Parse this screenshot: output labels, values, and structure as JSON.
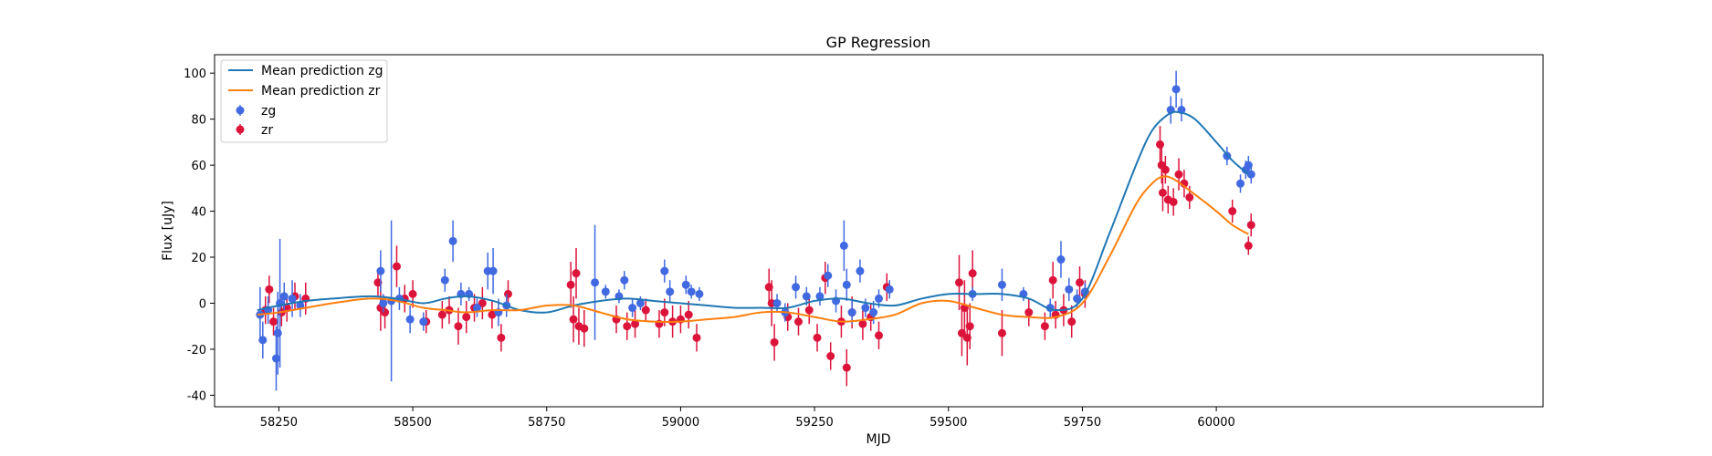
{
  "chart_data": {
    "type": "scatter",
    "title": "GP Regression",
    "xlabel": "MJD",
    "ylabel": "Flux [uJy]",
    "xlim": [
      58130,
      60610
    ],
    "ylim": [
      -45,
      108
    ],
    "xticks": [
      58250,
      58500,
      58750,
      59000,
      59250,
      59500,
      59750,
      60000
    ],
    "yticks": [
      -40,
      -20,
      0,
      20,
      40,
      60,
      80,
      100
    ],
    "grid": false,
    "legend_position": "top-left",
    "colors": {
      "zg_line": "#1f77b4",
      "zr_line": "#ff7f0e",
      "zg_points": "#4169e1",
      "zr_points": "#dc143c"
    },
    "series": [
      {
        "name": "Mean prediction zg",
        "kind": "line",
        "x": [
          58210,
          58250,
          58300,
          58350,
          58420,
          58470,
          58520,
          58560,
          58600,
          58650,
          58700,
          58750,
          58800,
          58850,
          58900,
          58950,
          59000,
          59050,
          59100,
          59150,
          59200,
          59250,
          59300,
          59350,
          59400,
          59450,
          59500,
          59550,
          59600,
          59650,
          59700,
          59750,
          59800,
          59850,
          59880,
          59910,
          59930,
          59960,
          60000,
          60030,
          60060
        ],
        "y": [
          -3,
          -1,
          1,
          2,
          3,
          2,
          0,
          2,
          3,
          1,
          -3,
          -4,
          -1,
          1,
          2,
          1,
          0,
          -1,
          -2,
          -2,
          -2,
          1,
          2,
          0,
          -1,
          2,
          4,
          4,
          4,
          2,
          -3,
          2,
          30,
          60,
          75,
          82,
          83,
          80,
          70,
          62,
          56
        ]
      },
      {
        "name": "Mean prediction zr",
        "kind": "line",
        "x": [
          58210,
          58250,
          58300,
          58350,
          58420,
          58470,
          58520,
          58560,
          58600,
          58650,
          58700,
          58750,
          58800,
          58850,
          58900,
          58950,
          59000,
          59050,
          59100,
          59150,
          59200,
          59250,
          59300,
          59350,
          59400,
          59450,
          59500,
          59550,
          59600,
          59650,
          59700,
          59750,
          59800,
          59850,
          59880,
          59900,
          59920,
          59950,
          60000,
          60030,
          60060
        ],
        "y": [
          -5,
          -4,
          -2,
          0,
          2,
          1,
          -2,
          -3,
          -4,
          -3,
          -3,
          -1,
          -1,
          -4,
          -7,
          -8,
          -8,
          -7,
          -6,
          -4,
          -4,
          -6,
          -8,
          -7,
          -5,
          0,
          1,
          -2,
          -5,
          -6,
          -6,
          0,
          20,
          43,
          52,
          55,
          54,
          49,
          40,
          34,
          30
        ]
      },
      {
        "name": "zg",
        "kind": "errorbar",
        "points": [
          [
            58215,
            -5,
            12
          ],
          [
            58220,
            -16,
            8
          ],
          [
            58230,
            -3,
            6
          ],
          [
            58245,
            -24,
            14
          ],
          [
            58248,
            -13,
            18
          ],
          [
            58252,
            0,
            28
          ],
          [
            58260,
            3,
            6
          ],
          [
            58275,
            2,
            8
          ],
          [
            58290,
            -1,
            5
          ],
          [
            58440,
            14,
            9
          ],
          [
            58445,
            0,
            4
          ],
          [
            58460,
            1,
            35
          ],
          [
            58475,
            2,
            5
          ],
          [
            58495,
            -7,
            6
          ],
          [
            58520,
            -8,
            4
          ],
          [
            58560,
            10,
            5
          ],
          [
            58575,
            27,
            9
          ],
          [
            58590,
            4,
            5
          ],
          [
            58605,
            4,
            3
          ],
          [
            58620,
            -2,
            4
          ],
          [
            58640,
            14,
            8
          ],
          [
            58650,
            14,
            10
          ],
          [
            58660,
            -4,
            6
          ],
          [
            58675,
            -1,
            5
          ],
          [
            58840,
            9,
            25
          ],
          [
            58860,
            5,
            3
          ],
          [
            58885,
            3,
            3
          ],
          [
            58895,
            10,
            4
          ],
          [
            58910,
            -2,
            4
          ],
          [
            58925,
            0,
            3
          ],
          [
            58970,
            14,
            5
          ],
          [
            58980,
            5,
            5
          ],
          [
            59010,
            8,
            4
          ],
          [
            59020,
            5,
            3
          ],
          [
            59035,
            4,
            3
          ],
          [
            59180,
            0,
            4
          ],
          [
            59195,
            -4,
            4
          ],
          [
            59215,
            7,
            5
          ],
          [
            59235,
            3,
            4
          ],
          [
            59260,
            3,
            4
          ],
          [
            59275,
            12,
            5
          ],
          [
            59290,
            1,
            5
          ],
          [
            59305,
            25,
            11
          ],
          [
            59310,
            8,
            7
          ],
          [
            59320,
            -4,
            5
          ],
          [
            59335,
            14,
            5
          ],
          [
            59345,
            -2,
            4
          ],
          [
            59360,
            -4,
            5
          ],
          [
            59370,
            2,
            4
          ],
          [
            59390,
            6,
            4
          ],
          [
            59545,
            4,
            3
          ],
          [
            59600,
            8,
            7
          ],
          [
            59640,
            4,
            3
          ],
          [
            59690,
            -2,
            4
          ],
          [
            59710,
            19,
            8
          ],
          [
            59725,
            6,
            5
          ],
          [
            59740,
            2,
            4
          ],
          [
            59755,
            5,
            4
          ],
          [
            59915,
            84,
            6
          ],
          [
            59925,
            93,
            8
          ],
          [
            59935,
            84,
            5
          ],
          [
            60020,
            64,
            4
          ],
          [
            60045,
            52,
            4
          ],
          [
            60055,
            58,
            4
          ],
          [
            60060,
            60,
            4
          ],
          [
            60065,
            56,
            4
          ]
        ]
      },
      {
        "name": "zr",
        "kind": "errorbar",
        "points": [
          [
            58225,
            -3,
            6
          ],
          [
            58232,
            6,
            6
          ],
          [
            58240,
            -8,
            6
          ],
          [
            58255,
            -4,
            6
          ],
          [
            58265,
            -2,
            6
          ],
          [
            58280,
            3,
            6
          ],
          [
            58300,
            2,
            7
          ],
          [
            58435,
            9,
            6
          ],
          [
            58440,
            -2,
            10
          ],
          [
            58448,
            -4,
            7
          ],
          [
            58470,
            16,
            9
          ],
          [
            58485,
            2,
            6
          ],
          [
            58500,
            4,
            6
          ],
          [
            58525,
            -8,
            5
          ],
          [
            58555,
            -5,
            6
          ],
          [
            58568,
            -3,
            6
          ],
          [
            58585,
            -10,
            8
          ],
          [
            58600,
            -6,
            7
          ],
          [
            58615,
            -2,
            6
          ],
          [
            58630,
            0,
            7
          ],
          [
            58648,
            -5,
            6
          ],
          [
            58665,
            -15,
            6
          ],
          [
            58678,
            4,
            6
          ],
          [
            58795,
            8,
            10
          ],
          [
            58800,
            -7,
            10
          ],
          [
            58805,
            13,
            11
          ],
          [
            58810,
            -10,
            8
          ],
          [
            58820,
            -11,
            8
          ],
          [
            58880,
            -7,
            6
          ],
          [
            58900,
            -10,
            6
          ],
          [
            58915,
            -9,
            6
          ],
          [
            58935,
            -3,
            5
          ],
          [
            58960,
            -9,
            6
          ],
          [
            58970,
            -4,
            6
          ],
          [
            58985,
            -8,
            7
          ],
          [
            59000,
            -7,
            6
          ],
          [
            59015,
            -5,
            6
          ],
          [
            59030,
            -15,
            6
          ],
          [
            59165,
            7,
            8
          ],
          [
            59170,
            0,
            10
          ],
          [
            59175,
            -17,
            8
          ],
          [
            59200,
            -6,
            6
          ],
          [
            59220,
            -8,
            6
          ],
          [
            59240,
            -3,
            6
          ],
          [
            59255,
            -15,
            6
          ],
          [
            59270,
            11,
            7
          ],
          [
            59280,
            -23,
            6
          ],
          [
            59300,
            -8,
            7
          ],
          [
            59310,
            -28,
            8
          ],
          [
            59320,
            -4,
            7
          ],
          [
            59340,
            -9,
            7
          ],
          [
            59355,
            -6,
            6
          ],
          [
            59370,
            -14,
            6
          ],
          [
            59385,
            7,
            6
          ],
          [
            59520,
            9,
            12
          ],
          [
            59525,
            -13,
            10
          ],
          [
            59530,
            -2,
            12
          ],
          [
            59535,
            -15,
            12
          ],
          [
            59540,
            -10,
            10
          ],
          [
            59545,
            13,
            10
          ],
          [
            59600,
            -13,
            10
          ],
          [
            59650,
            -4,
            6
          ],
          [
            59680,
            -10,
            6
          ],
          [
            59695,
            10,
            8
          ],
          [
            59700,
            -5,
            6
          ],
          [
            59715,
            -3,
            7
          ],
          [
            59730,
            -8,
            7
          ],
          [
            59745,
            9,
            7
          ],
          [
            59755,
            4,
            6
          ],
          [
            59895,
            69,
            8
          ],
          [
            59898,
            60,
            8
          ],
          [
            59900,
            48,
            8
          ],
          [
            59905,
            58,
            6
          ],
          [
            59910,
            45,
            6
          ],
          [
            59920,
            44,
            6
          ],
          [
            59930,
            56,
            7
          ],
          [
            59940,
            52,
            6
          ],
          [
            59950,
            46,
            5
          ],
          [
            60030,
            40,
            5
          ],
          [
            60060,
            25,
            4
          ],
          [
            60065,
            34,
            5
          ]
        ]
      }
    ]
  }
}
